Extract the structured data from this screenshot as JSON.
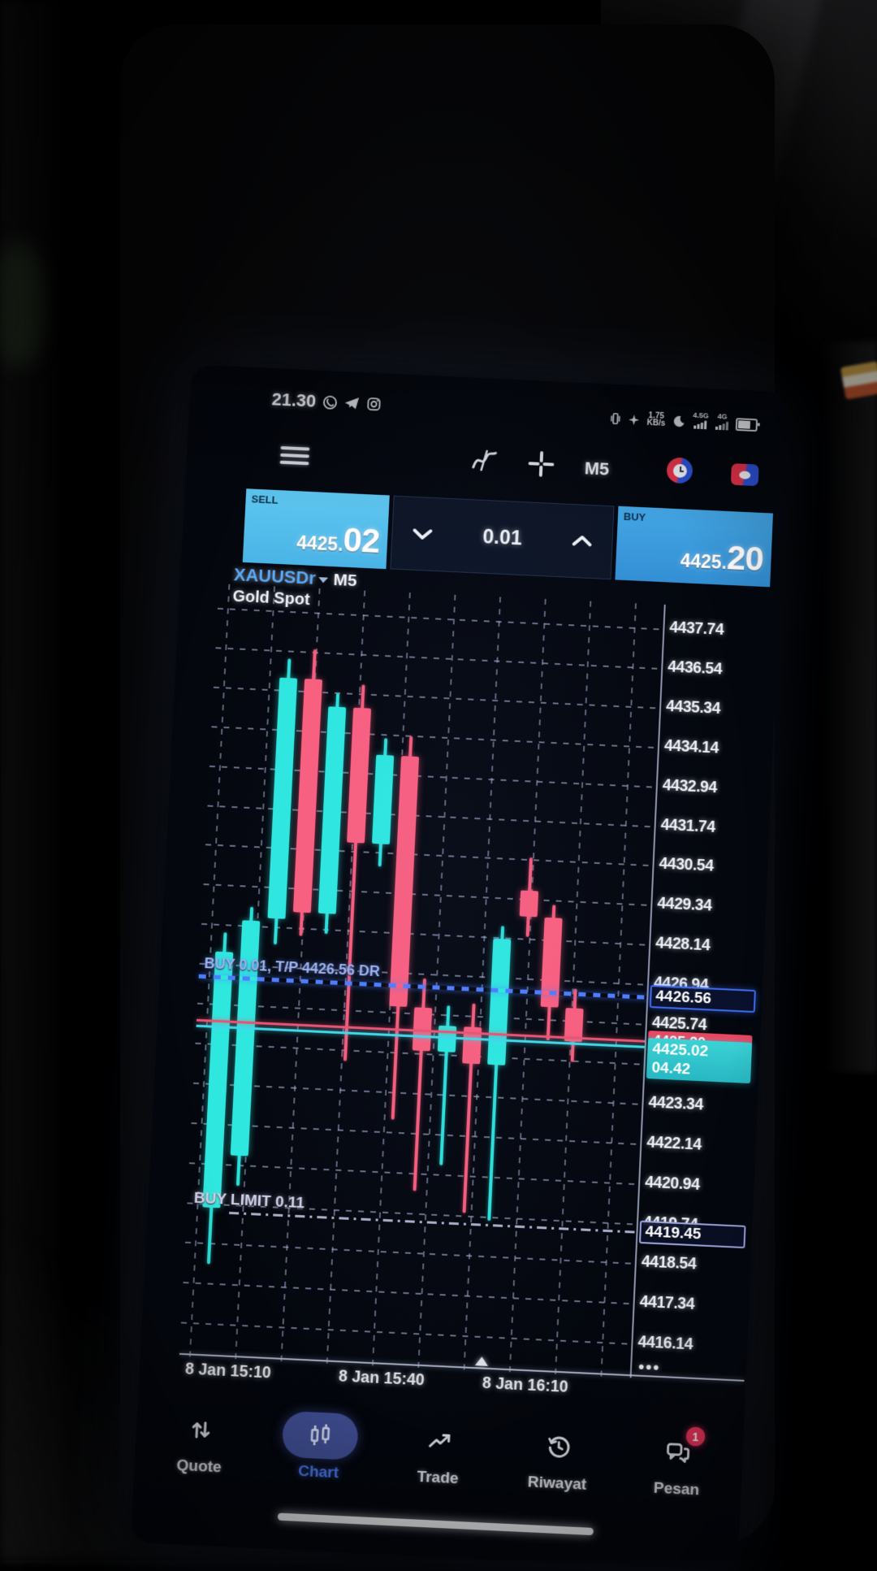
{
  "phone": {
    "status_bar": {
      "time": "21.30",
      "net_speed_top": "1.75",
      "net_speed_bottom": "KB/s",
      "sim1_label": "4.5G",
      "sim2_label": "4G"
    },
    "toolbar": {
      "timeframe": "M5"
    },
    "trade_panel": {
      "sell_label": "SELL",
      "sell_price_small": "4425.",
      "sell_price_big": "02",
      "volume": "0.01",
      "buy_label": "BUY",
      "buy_price_small": "4425.",
      "buy_price_big": "20"
    },
    "symbol_header": {
      "symbol": "XAUUSDr",
      "timeframe": "M5",
      "description": "Gold Spot"
    },
    "annotations": {
      "position_line_label": "BUY 0.01, T/P 4426.56 DR",
      "pending_line_label": "BUY LIMIT 0.11"
    },
    "price_tags": {
      "take_profit": "4426.56",
      "ask": "4425.20",
      "bid": "4425.02",
      "candle_countdown": "04.42",
      "pending": "4419.45",
      "axis_more": "•••"
    },
    "bottom_nav": {
      "items": [
        {
          "label": "Quote",
          "active": false
        },
        {
          "label": "Chart",
          "active": true
        },
        {
          "label": "Trade",
          "active": false
        },
        {
          "label": "Riwayat",
          "active": false
        },
        {
          "label": "Pesan",
          "active": false,
          "badge": "1"
        }
      ]
    }
  },
  "chart_data": {
    "type": "candlestick",
    "symbol": "XAUUSDr",
    "timeframe": "M5",
    "title": "Gold Spot",
    "y_axis_labels": [
      "4437.74",
      "4436.54",
      "4435.34",
      "4434.14",
      "4432.94",
      "4431.74",
      "4430.54",
      "4429.34",
      "4428.14",
      "4426.94",
      "4425.74",
      "4424.54",
      "4423.34",
      "4422.14",
      "4420.94",
      "4419.74",
      "4418.54",
      "4417.34",
      "4416.14"
    ],
    "x_axis_labels": [
      "8 Jan 15:10",
      "8 Jan 15:40",
      "8 Jan 16:10"
    ],
    "price_step": 1.2,
    "grid": true,
    "lines": {
      "take_profit": 4426.56,
      "ask": 4425.2,
      "bid": 4425.02,
      "buy_limit": 4419.45
    },
    "candles": [
      {
        "o": 4419.6,
        "h": 4427.9,
        "l": 4417.9,
        "c": 4427.3
      },
      {
        "o": 4421.2,
        "h": 4428.7,
        "l": 4420.3,
        "c": 4428.3
      },
      {
        "o": 4428.4,
        "h": 4436.3,
        "l": 4427.6,
        "c": 4435.7
      },
      {
        "o": 4435.7,
        "h": 4436.6,
        "l": 4427.9,
        "c": 4428.6
      },
      {
        "o": 4428.6,
        "h": 4435.3,
        "l": 4428.0,
        "c": 4434.9
      },
      {
        "o": 4434.9,
        "h": 4435.6,
        "l": 4424.2,
        "c": 4430.8
      },
      {
        "o": 4430.8,
        "h": 4434.0,
        "l": 4430.1,
        "c": 4433.5
      },
      {
        "o": 4433.5,
        "h": 4434.1,
        "l": 4422.5,
        "c": 4425.9
      },
      {
        "o": 4425.9,
        "h": 4426.8,
        "l": 4420.4,
        "c": 4424.6
      },
      {
        "o": 4424.6,
        "h": 4426.0,
        "l": 4421.2,
        "c": 4425.4
      },
      {
        "o": 4425.4,
        "h": 4426.1,
        "l": 4419.8,
        "c": 4424.3
      },
      {
        "o": 4424.3,
        "h": 4428.5,
        "l": 4419.6,
        "c": 4428.1
      },
      {
        "o": 4429.6,
        "h": 4430.6,
        "l": 4428.2,
        "c": 4428.8
      },
      {
        "o": 4428.8,
        "h": 4429.2,
        "l": 4425.1,
        "c": 4426.1
      },
      {
        "o": 4426.1,
        "h": 4426.7,
        "l": 4424.5,
        "c": 4425.1
      }
    ],
    "colors": {
      "bull": "#2ee8df",
      "bear": "#fb5f7e",
      "tp_line": "#4d7dff",
      "ask_line": "#f0506e",
      "bid_line": "#3fd9e8",
      "sell_box": "#53bdea",
      "buy_box": "#3a9cdd",
      "nav_active": "#4f7df5"
    }
  }
}
